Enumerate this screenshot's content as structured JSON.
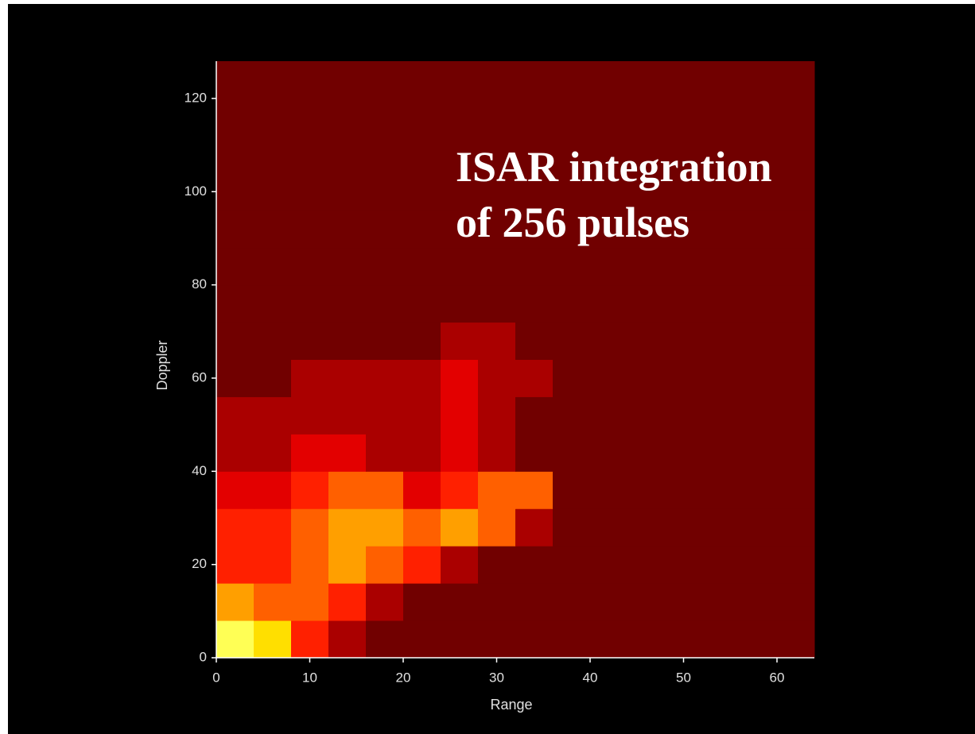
{
  "chart_data": {
    "type": "heatmap",
    "annotation": [
      "ISAR integration",
      "of 256 pulses"
    ],
    "xlabel": "Range",
    "ylabel": "Doppler",
    "xlim": [
      0,
      64
    ],
    "ylim": [
      0,
      128
    ],
    "xticks": [
      0,
      10,
      20,
      30,
      40,
      50,
      60
    ],
    "yticks": [
      0,
      20,
      40,
      60,
      80,
      100,
      120
    ],
    "x": [
      0,
      4,
      8,
      12,
      16,
      20,
      24,
      28,
      32,
      36,
      40,
      44,
      48,
      52,
      56,
      60,
      64
    ],
    "y": [
      0,
      8,
      16,
      24,
      32,
      40,
      48,
      56,
      64,
      72,
      80,
      88,
      96,
      104,
      112,
      120,
      128
    ],
    "zmax": 10,
    "z": [
      [
        9,
        8,
        5,
        3,
        2,
        2,
        2,
        2,
        2,
        2,
        2,
        2,
        2,
        2,
        2,
        2
      ],
      [
        7,
        6,
        6,
        5,
        3,
        2,
        2,
        2,
        2,
        2,
        2,
        2,
        2,
        2,
        2,
        2
      ],
      [
        5,
        5,
        6,
        7,
        6,
        5,
        3,
        2,
        2,
        2,
        2,
        2,
        2,
        2,
        2,
        2
      ],
      [
        5,
        5,
        6,
        7,
        7,
        6,
        7,
        6,
        3,
        2,
        2,
        2,
        2,
        2,
        2,
        2
      ],
      [
        4,
        4,
        5,
        6,
        6,
        4,
        5,
        6,
        6,
        2,
        2,
        2,
        2,
        2,
        2,
        2
      ],
      [
        3,
        3,
        4,
        4,
        3,
        3,
        4,
        3,
        2,
        2,
        2,
        2,
        2,
        2,
        2,
        2
      ],
      [
        3,
        3,
        3,
        3,
        3,
        3,
        4,
        3,
        2,
        2,
        2,
        2,
        2,
        2,
        2,
        2
      ],
      [
        2,
        2,
        3,
        3,
        3,
        3,
        4,
        3,
        3,
        2,
        2,
        2,
        2,
        2,
        2,
        2
      ],
      [
        2,
        2,
        2,
        2,
        2,
        2,
        3,
        3,
        2,
        2,
        2,
        2,
        2,
        2,
        2,
        2
      ],
      [
        2,
        2,
        2,
        2,
        2,
        2,
        2,
        2,
        2,
        2,
        2,
        2,
        2,
        2,
        2,
        2
      ],
      [
        2,
        2,
        2,
        2,
        2,
        2,
        2,
        2,
        2,
        2,
        2,
        2,
        2,
        2,
        2,
        2
      ],
      [
        2,
        2,
        2,
        2,
        2,
        2,
        2,
        2,
        2,
        2,
        2,
        2,
        2,
        2,
        2,
        2
      ],
      [
        2,
        2,
        2,
        2,
        2,
        2,
        2,
        2,
        2,
        2,
        2,
        2,
        2,
        2,
        2,
        2
      ],
      [
        2,
        2,
        2,
        2,
        2,
        2,
        2,
        2,
        2,
        2,
        2,
        2,
        2,
        2,
        2,
        2
      ],
      [
        2,
        2,
        2,
        2,
        2,
        2,
        2,
        2,
        2,
        2,
        2,
        2,
        2,
        2,
        2,
        2
      ],
      [
        2,
        2,
        2,
        2,
        2,
        2,
        2,
        2,
        2,
        2,
        2,
        2,
        2,
        2,
        2,
        2
      ]
    ]
  }
}
